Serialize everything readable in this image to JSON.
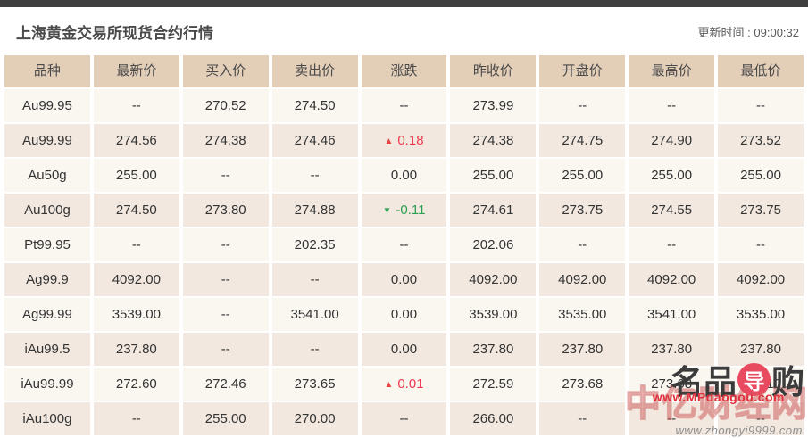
{
  "page": {
    "title": "上海黄金交易所现货合约行情",
    "update_time_label": "更新时间 : ",
    "update_time": "09:00:32"
  },
  "icons": {
    "up_arrow_glyph": "▲",
    "down_arrow_glyph": "▼"
  },
  "colors": {
    "top_bar": "#3f3f3f",
    "header_bg": "#e3ceb8",
    "row_odd_bg": "#faf7f1",
    "row_even_bg": "#f2e8df",
    "up_red": "#f0394d",
    "down_green": "#2ca052",
    "watermark_red": "#e0303c"
  },
  "table": {
    "headers": [
      "品种",
      "最新价",
      "买入价",
      "卖出价",
      "涨跌",
      "昨收价",
      "开盘价",
      "最高价",
      "最低价"
    ],
    "rows": [
      {
        "variety": "Au99.95",
        "latest": "--",
        "buy": "270.52",
        "sell": "274.50",
        "change": "--",
        "change_dir": "flat",
        "prev_close": "273.99",
        "open": "--",
        "high": "--",
        "low": "--"
      },
      {
        "variety": "Au99.99",
        "latest": "274.56",
        "buy": "274.38",
        "sell": "274.46",
        "change": "0.18",
        "change_dir": "up",
        "prev_close": "274.38",
        "open": "274.75",
        "high": "274.90",
        "low": "273.52"
      },
      {
        "variety": "Au50g",
        "latest": "255.00",
        "buy": "--",
        "sell": "--",
        "change": "0.00",
        "change_dir": "flat",
        "prev_close": "255.00",
        "open": "255.00",
        "high": "255.00",
        "low": "255.00"
      },
      {
        "variety": "Au100g",
        "latest": "274.50",
        "buy": "273.80",
        "sell": "274.88",
        "change": "-0.11",
        "change_dir": "down",
        "prev_close": "274.61",
        "open": "273.75",
        "high": "274.55",
        "low": "273.75"
      },
      {
        "variety": "Pt99.95",
        "latest": "--",
        "buy": "--",
        "sell": "202.35",
        "change": "--",
        "change_dir": "flat",
        "prev_close": "202.06",
        "open": "--",
        "high": "--",
        "low": "--"
      },
      {
        "variety": "Ag99.9",
        "latest": "4092.00",
        "buy": "--",
        "sell": "--",
        "change": "0.00",
        "change_dir": "flat",
        "prev_close": "4092.00",
        "open": "4092.00",
        "high": "4092.00",
        "low": "4092.00"
      },
      {
        "variety": "Ag99.99",
        "latest": "3539.00",
        "buy": "--",
        "sell": "3541.00",
        "change": "0.00",
        "change_dir": "flat",
        "prev_close": "3539.00",
        "open": "3535.00",
        "high": "3541.00",
        "low": "3535.00"
      },
      {
        "variety": "iAu99.5",
        "latest": "237.80",
        "buy": "--",
        "sell": "--",
        "change": "0.00",
        "change_dir": "flat",
        "prev_close": "237.80",
        "open": "237.80",
        "high": "237.80",
        "low": "237.80"
      },
      {
        "variety": "iAu99.99",
        "latest": "272.60",
        "buy": "272.46",
        "sell": "273.65",
        "change": "0.01",
        "change_dir": "up",
        "prev_close": "272.59",
        "open": "273.68",
        "high": "273.68",
        "low": "261.10"
      },
      {
        "variety": "iAu100g",
        "latest": "--",
        "buy": "255.00",
        "sell": "270.00",
        "change": "--",
        "change_dir": "flat",
        "prev_close": "266.00",
        "open": "--",
        "high": "--",
        "low": "--"
      }
    ]
  },
  "watermark": {
    "mp_name_part1": "名品",
    "mp_circle_char": "导",
    "mp_name_part2": "购",
    "mp_url": "www.MPdaogou.com",
    "zhongyi_name": "中亿财经网",
    "zhongyi_url": "www.zhongyi9999.com"
  }
}
